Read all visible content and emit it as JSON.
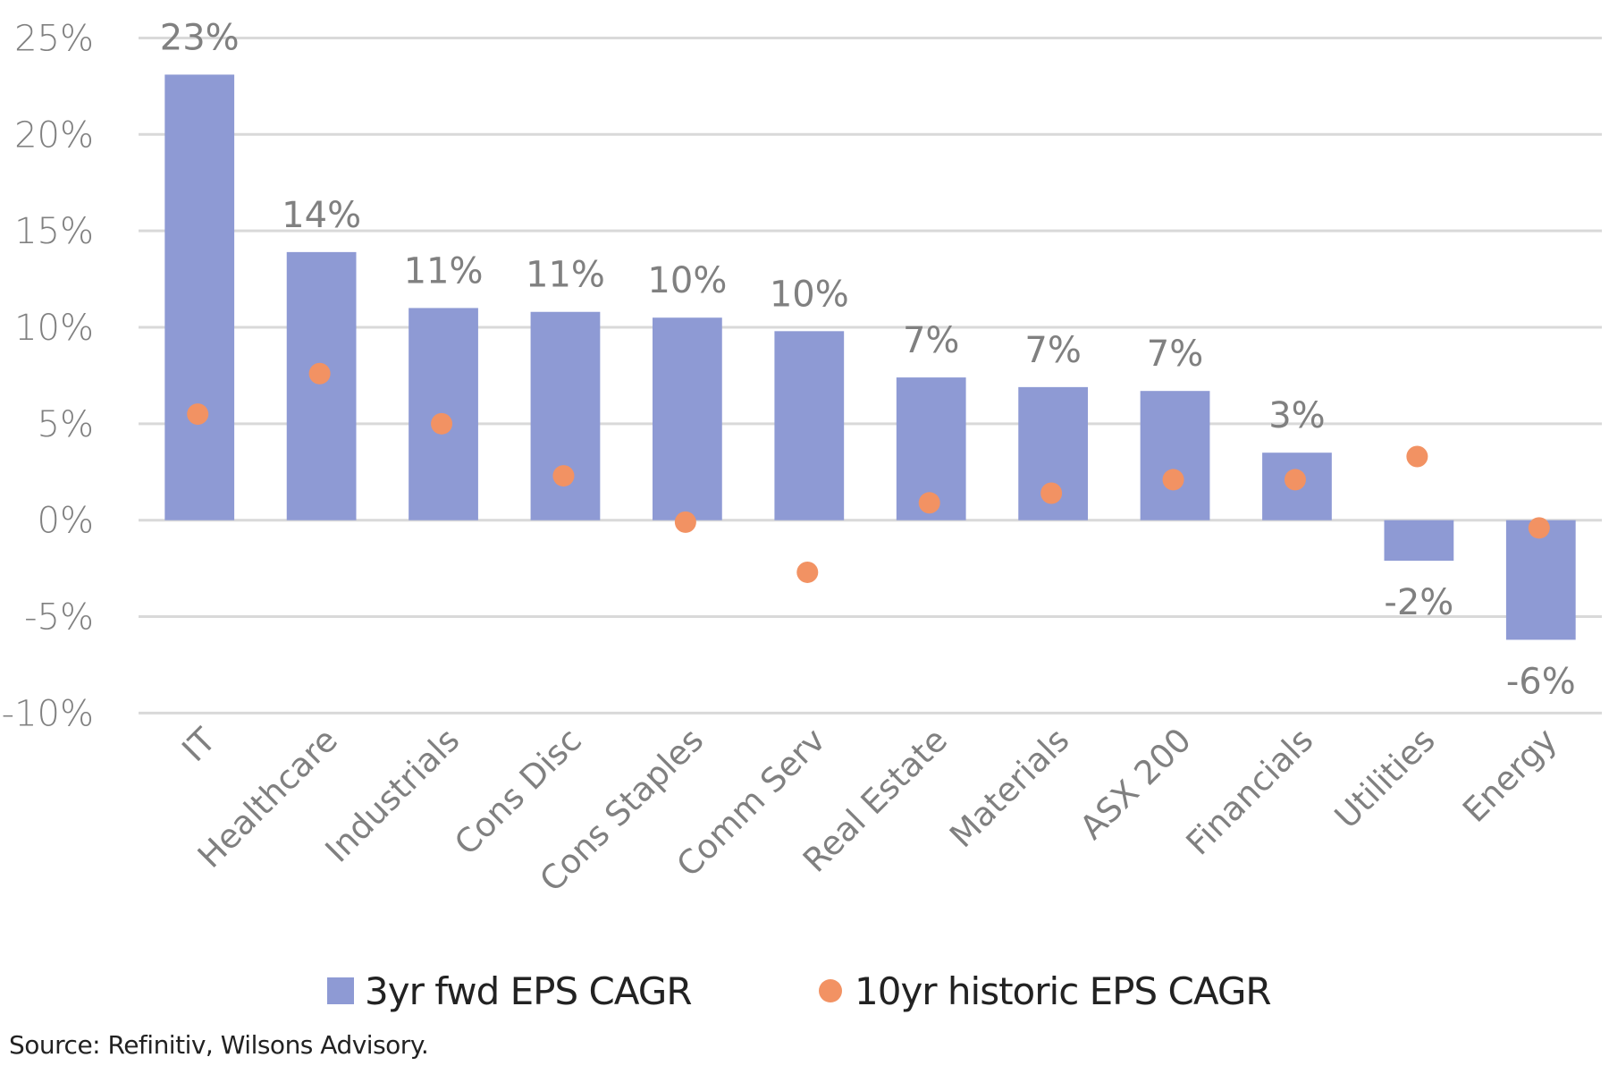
{
  "chart_data": {
    "type": "bar",
    "title": "",
    "xlabel": "",
    "ylabel": "",
    "ylim": [
      -10,
      25
    ],
    "yticks": [
      25,
      20,
      15,
      10,
      5,
      0,
      -5,
      -10
    ],
    "ytick_labels": [
      "25%",
      "20%",
      "15%",
      "10%",
      "5%",
      "0%",
      "-5%",
      "-10%"
    ],
    "grid": true,
    "categories": [
      "IT",
      "Healthcare",
      "Industrials",
      "Cons Disc",
      "Cons Staples",
      "Comm Serv",
      "Real Estate",
      "Materials",
      "ASX 200",
      "Financials",
      "Utilities",
      "Energy"
    ],
    "series": [
      {
        "name": "3yr fwd EPS CAGR",
        "type": "bar",
        "color": "#8E9AD4",
        "values": [
          23.1,
          13.9,
          11.0,
          10.8,
          10.5,
          9.8,
          7.4,
          6.9,
          6.7,
          3.5,
          -2.1,
          -6.2
        ],
        "data_labels": [
          "23%",
          "14%",
          "11%",
          "11%",
          "10%",
          "10%",
          "7%",
          "7%",
          "7%",
          "3%",
          "-2%",
          "-6%"
        ]
      },
      {
        "name": "10yr historic EPS CAGR",
        "type": "scatter",
        "color": "#F29263",
        "values": [
          5.5,
          7.6,
          5.0,
          2.3,
          -0.1,
          -2.7,
          0.9,
          1.4,
          2.1,
          2.1,
          3.3,
          -0.4
        ]
      }
    ],
    "legend": "bottom",
    "source": "Source: Refinitiv, Wilsons Advisory."
  },
  "legend": {
    "bar_label": "3yr fwd EPS CAGR",
    "dot_label": "10yr historic EPS CAGR"
  },
  "source": "Source: Refinitiv, Wilsons Advisory."
}
